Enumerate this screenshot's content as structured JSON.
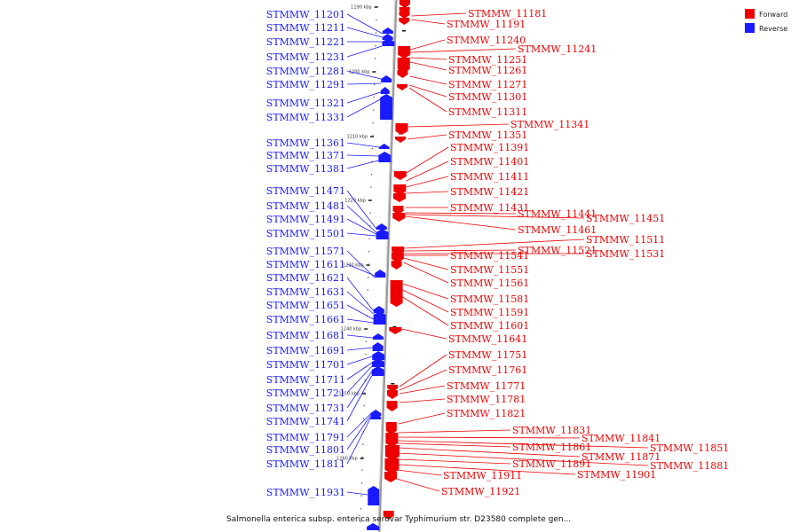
{
  "colors": {
    "forward": "#ee0000",
    "reverse": "#1a1aff",
    "axis": "#999999",
    "leader_dark": "#222222"
  },
  "legend": {
    "forward_label": "Forward",
    "reverse_label": "Reverse"
  },
  "caption": "Salmonella enterica subsp. enterica serovar Typhimurium str. D23580 complete gen...",
  "axis": {
    "ticks": [
      {
        "label": "1190 kbp"
      },
      {
        "label": "1200 kbp"
      },
      {
        "label": "1210 kbp"
      },
      {
        "label": "1220 kbp"
      },
      {
        "label": "1230 kbp"
      },
      {
        "label": "1240 kbp"
      },
      {
        "label": "1250 kbp"
      },
      {
        "label": "1260 kbp"
      }
    ]
  },
  "reverse_genes": [
    "STMMW_11201",
    "STMMW_11211",
    "STMMW_11221",
    "STMMW_11231",
    "STMMW_11281",
    "STMMW_11291",
    "STMMW_11321",
    "STMMW_11331",
    "STMMW_11361",
    "STMMW_11371",
    "STMMW_11381",
    "STMMW_11471",
    "STMMW_11481",
    "STMMW_11491",
    "STMMW_11501",
    "STMMW_11571",
    "STMMW_11611",
    "STMMW_11621",
    "STMMW_11631",
    "STMMW_11651",
    "STMMW_11661",
    "STMMW_11681",
    "STMMW_11691",
    "STMMW_11701",
    "STMMW_11711",
    "STMMW_11721",
    "STMMW_11731",
    "STMMW_11741",
    "STMMW_11791",
    "STMMW_11801",
    "STMMW_11811",
    "STMMW_11931"
  ],
  "forward_genes": [
    "STMMW_11181",
    "STMMW_11191",
    "STMMW_11240",
    "STMMW_11241",
    "STMMW_11251",
    "STMMW_11261",
    "STMMW_11271",
    "STMMW_11301",
    "STMMW_11311",
    "STMMW_11341",
    "STMMW_11351",
    "STMMW_11391",
    "STMMW_11401",
    "STMMW_11411",
    "STMMW_11421",
    "STMMW_11431",
    "STMMW_11441",
    "STMMW_11451",
    "STMMW_11461",
    "STMMW_11511",
    "STMMW_11521",
    "STMMW_11531",
    "STMMW_11541",
    "STMMW_11551",
    "STMMW_11561",
    "STMMW_11581",
    "STMMW_11591",
    "STMMW_11601",
    "STMMW_11641",
    "STMMW_11751",
    "STMMW_11761",
    "STMMW_11771",
    "STMMW_11781",
    "STMMW_11821",
    "STMMW_11831",
    "STMMW_11841",
    "STMMW_11851",
    "STMMW_11861",
    "STMMW_11871",
    "STMMW_11881",
    "STMMW_11891",
    "STMMW_11901",
    "STMMW_11911",
    "STMMW_11921"
  ]
}
